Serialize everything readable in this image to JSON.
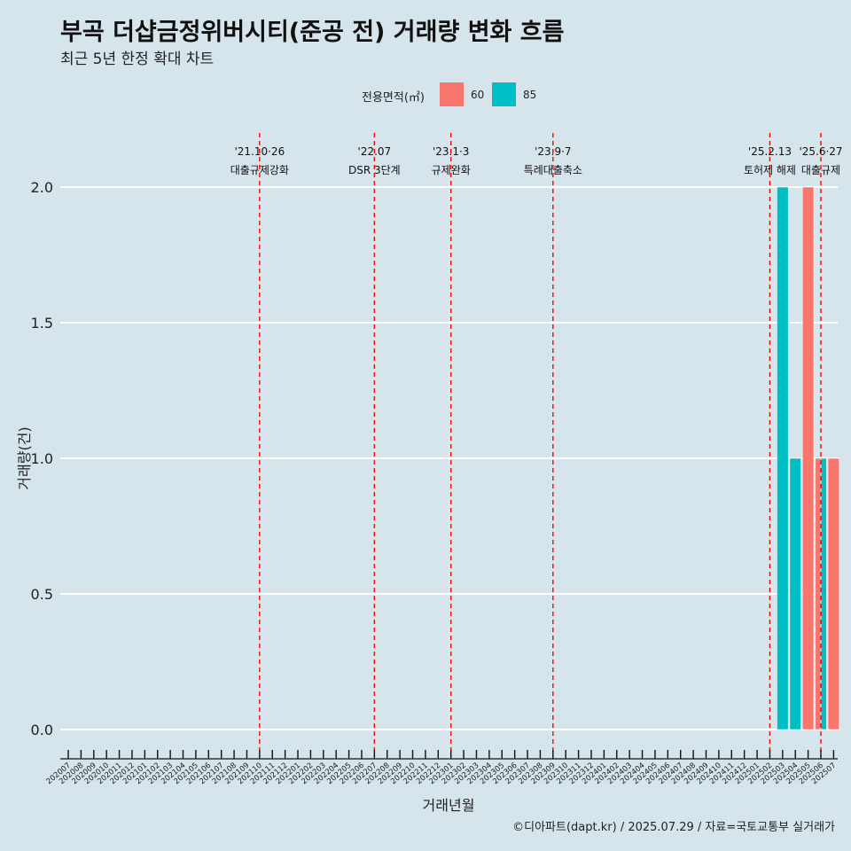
{
  "title": "부곡 더샵금정위버시티(준공 전) 거래량 변화 흐름",
  "subtitle": "최근 5년 한정 확대 차트",
  "caption": "©디아파트(dapt.kr) / 2025.07.29 / 자료=국토교통부 실거래가",
  "legend": {
    "title": "전용면적(㎡)",
    "items": [
      {
        "label": "60",
        "color": "#f8766d"
      },
      {
        "label": "85",
        "color": "#00bfc4"
      }
    ]
  },
  "chart_data": {
    "type": "bar",
    "xlabel": "거래년월",
    "ylabel": "거래량(건)",
    "ylim": [
      0,
      2
    ],
    "yticks": [
      "0.0",
      "0.5",
      "1.0",
      "1.5",
      "2.0"
    ],
    "categories": [
      "202007",
      "202008",
      "202009",
      "202010",
      "202011",
      "202012",
      "202101",
      "202102",
      "202103",
      "202104",
      "202105",
      "202106",
      "202107",
      "202108",
      "202109",
      "202110",
      "202111",
      "202112",
      "202201",
      "202202",
      "202203",
      "202204",
      "202205",
      "202206",
      "202207",
      "202208",
      "202209",
      "202210",
      "202211",
      "202212",
      "202301",
      "202302",
      "202303",
      "202304",
      "202305",
      "202306",
      "202307",
      "202308",
      "202309",
      "202310",
      "202311",
      "202312",
      "202401",
      "202402",
      "202403",
      "202404",
      "202405",
      "202406",
      "202407",
      "202408",
      "202409",
      "202410",
      "202411",
      "202412",
      "202501",
      "202502",
      "202503",
      "202504",
      "202505",
      "202506",
      "202507"
    ],
    "series": [
      {
        "name": "60",
        "color": "#f8766d",
        "points": [
          {
            "x": "202505",
            "y": 2
          },
          {
            "x": "202506",
            "y": 1
          },
          {
            "x": "202507",
            "y": 1
          }
        ]
      },
      {
        "name": "85",
        "color": "#00bfc4",
        "points": [
          {
            "x": "202503",
            "y": 2
          },
          {
            "x": "202504",
            "y": 1
          },
          {
            "x": "202506",
            "y": 1
          }
        ]
      }
    ],
    "events": [
      {
        "x": "202110",
        "date": "'21.10·26",
        "text": "대출규제강화"
      },
      {
        "x": "202207",
        "date": "'22.07",
        "text": "DSR 3단계"
      },
      {
        "x": "202301",
        "date": "'23.1·3",
        "text": "규제완화"
      },
      {
        "x": "202309",
        "date": "'23.9·7",
        "text": "특례대출축소"
      },
      {
        "x": "202502",
        "date": "'25.2.13",
        "text": "토허제 해제"
      },
      {
        "x": "202506",
        "date": "'25.6·27",
        "text": "대출규제"
      }
    ]
  }
}
